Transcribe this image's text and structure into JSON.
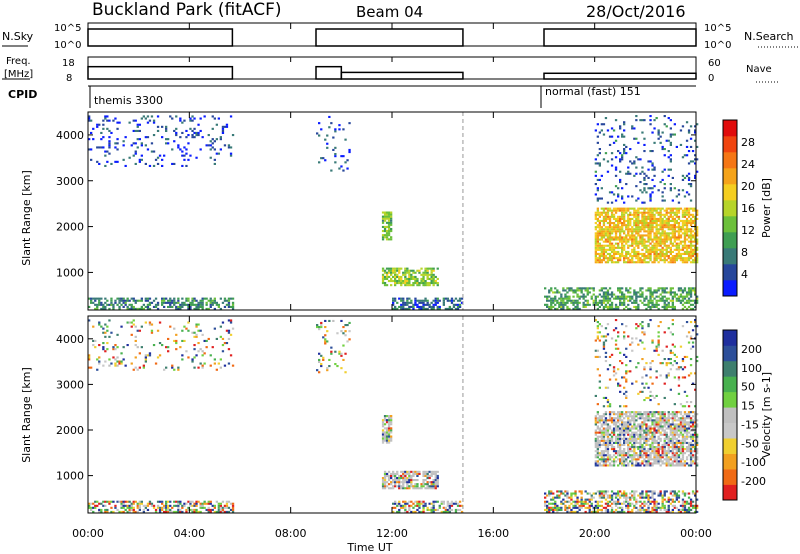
{
  "header": {
    "site": "Buckland Park (fitACF)",
    "beam": "Beam 04",
    "date": "28/Oct/2016"
  },
  "status_panel": {
    "left_labels": {
      "nsky": "N.Sky",
      "freq": "Freq.",
      "freq_unit": "[MHz]",
      "cpid": "CPID"
    },
    "right_labels": {
      "nsearch": "N.Search",
      "nave": "Nave"
    },
    "noise_ticks": [
      "10^5",
      "10^0"
    ],
    "noise_ticks_right": [
      "10^5",
      "10^0"
    ],
    "freq_ticks": [
      "18",
      "8"
    ],
    "nave_ticks": [
      "60",
      "0"
    ],
    "cpid_entries": [
      {
        "start": "00:00",
        "label": "themis 3300"
      },
      {
        "start": "18:00",
        "label": "normal (fast) 151"
      }
    ]
  },
  "colorbars": {
    "power": {
      "label": "Power [dB]",
      "ticks": [
        "4",
        "8",
        "12",
        "16",
        "20",
        "24",
        "28"
      ],
      "colors": [
        "#0a1cff",
        "#27479b",
        "#397a77",
        "#3f9e52",
        "#6cc03b",
        "#b6d42a",
        "#f5ce20",
        "#f5a31a",
        "#f57615",
        "#f0440f",
        "#e00b0b"
      ]
    },
    "velocity": {
      "label": "Velocity [m s-1]",
      "ticks": [
        "200",
        "100",
        "50",
        "15",
        "-15",
        "-50",
        "-100",
        "-200"
      ],
      "colors": [
        "#1f2f9e",
        "#2d4f9a",
        "#3e7f6e",
        "#48b14f",
        "#70d040",
        "#c0c0c0",
        "#c8c8c8",
        "#f0cf30",
        "#f2a020",
        "#f06a15",
        "#e02020"
      ]
    }
  },
  "chart_data": {
    "type": "heatmap",
    "xlabel": "Time UT",
    "x_ticks": [
      "00:00",
      "04:00",
      "08:00",
      "12:00",
      "16:00",
      "20:00",
      "00:00"
    ],
    "x_range_hours": [
      0,
      24
    ],
    "ylabel": "Slant Range [km]",
    "y_ticks": [
      1000,
      2000,
      3000,
      4000
    ],
    "ylim": [
      180,
      4500
    ],
    "panels": [
      "Power",
      "Velocity"
    ],
    "data_coverage_hours": [
      [
        0.0,
        5.7
      ],
      [
        9.0,
        14.8
      ],
      [
        18.0,
        24.0
      ]
    ],
    "frequency_MHz": [
      {
        "start": 0.0,
        "end": 5.7,
        "value": 13.6
      },
      {
        "start": 9.0,
        "end": 10.0,
        "value": 13.6
      },
      {
        "start": 10.0,
        "end": 14.8,
        "value": 11.0
      },
      {
        "start": 18.0,
        "end": 24.0,
        "value": 10.6
      }
    ],
    "noise_sky_level": "~10^4.5",
    "scatter_regions": [
      {
        "name": "near-range",
        "t": [
          0.0,
          5.7
        ],
        "r": [
          180,
          450
        ],
        "power_dB": 8
      },
      {
        "name": "near-range",
        "t": [
          12.0,
          14.8
        ],
        "r": [
          180,
          450
        ],
        "power_dB": 6
      },
      {
        "name": "near-range",
        "t": [
          18.0,
          24.0
        ],
        "r": [
          180,
          650
        ],
        "power_dB": 10
      },
      {
        "name": "ionospheric",
        "t": [
          11.6,
          13.8
        ],
        "r": [
          700,
          1100
        ],
        "power_dB": 13
      },
      {
        "name": "ionospheric",
        "t": [
          11.6,
          12.0
        ],
        "r": [
          1700,
          2300
        ],
        "power_dB": 12
      },
      {
        "name": "ionospheric",
        "t": [
          20.0,
          24.0
        ],
        "r": [
          1200,
          2400
        ],
        "power_dB": 18
      },
      {
        "name": "far-range",
        "t": [
          0.0,
          5.7
        ],
        "r": [
          3300,
          4400
        ],
        "power_dB": 4
      },
      {
        "name": "far-range",
        "t": [
          9.0,
          10.3
        ],
        "r": [
          3200,
          4400
        ],
        "power_dB": 4
      },
      {
        "name": "far-range",
        "t": [
          20.0,
          24.0
        ],
        "r": [
          2500,
          4400
        ],
        "power_dB": 5
      }
    ]
  }
}
